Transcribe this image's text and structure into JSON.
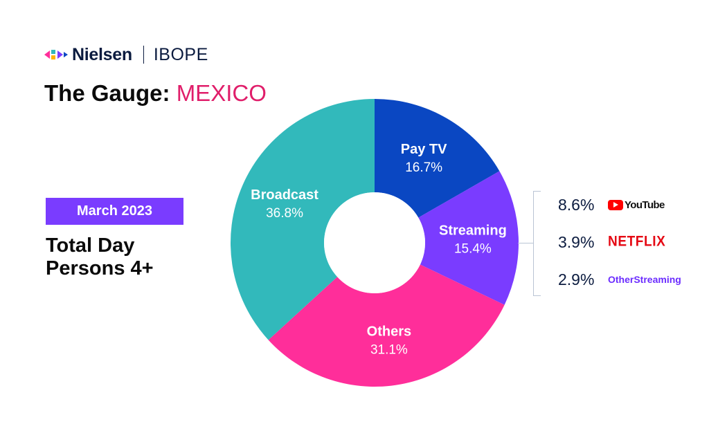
{
  "header": {
    "brand": "Nielsen",
    "partner": "IBOPE",
    "logo_icon": "nielsen-arrow-mark-icon",
    "title_prefix": "The Gauge: ",
    "title_country": "MEXICO"
  },
  "period_badge": "March 2023",
  "subtitle_lines": [
    "Total Day",
    "Persons 4+"
  ],
  "chart_data": {
    "type": "pie",
    "donut": true,
    "start_angle_deg": 0,
    "direction": "clockwise",
    "slices": [
      {
        "label": "Pay TV",
        "value": 16.7,
        "value_label": "16.7%",
        "color": "#0a47c2"
      },
      {
        "label": "Streaming",
        "value": 15.4,
        "value_label": "15.4%",
        "color": "#7a3cff"
      },
      {
        "label": "Others",
        "value": 31.1,
        "value_label": "31.1%",
        "color": "#ff2e9a"
      },
      {
        "label": "Broadcast",
        "value": 36.8,
        "value_label": "36.8%",
        "color": "#32b9bb"
      }
    ],
    "streaming_breakdown": [
      {
        "value": 8.6,
        "value_label": "8.6%",
        "service": "YouTube",
        "icon": "youtube-logo-icon"
      },
      {
        "value": 3.9,
        "value_label": "3.9%",
        "service": "NETFLIX",
        "icon": "netflix-logo-icon"
      },
      {
        "value": 2.9,
        "value_label": "2.9%",
        "service_lines": [
          "Other",
          "Streaming"
        ]
      }
    ]
  }
}
